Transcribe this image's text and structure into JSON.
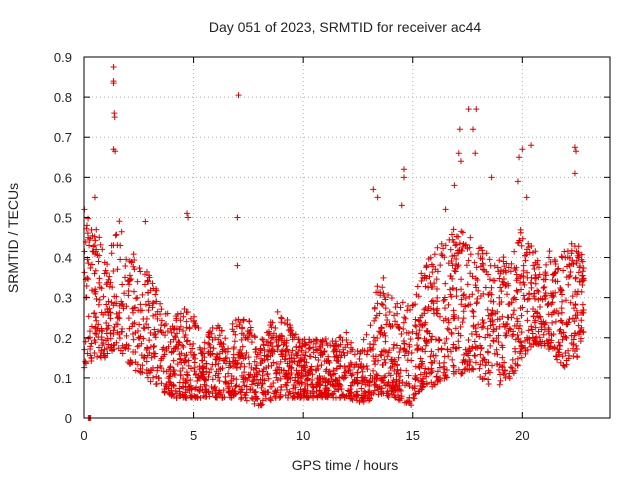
{
  "chart_data": {
    "type": "scatter",
    "title": "Day 051 of 2023, SRMTID for receiver ac44",
    "xlabel": "GPS time / hours",
    "ylabel": "SRMTID / TECUs",
    "xlim": [
      0,
      24
    ],
    "ylim": [
      0,
      0.9
    ],
    "xticks": [
      0,
      5,
      10,
      15,
      20
    ],
    "yticks": [
      0,
      0.1,
      0.2,
      0.3,
      0.4,
      0.5,
      0.6,
      0.7,
      0.8,
      0.9
    ],
    "grid": true,
    "marker": "+",
    "color": "#e00000",
    "envelope": [
      [
        0.0,
        0.12,
        0.5
      ],
      [
        0.5,
        0.15,
        0.5
      ],
      [
        1.0,
        0.15,
        0.4
      ],
      [
        1.5,
        0.18,
        0.52
      ],
      [
        2.0,
        0.14,
        0.42
      ],
      [
        2.5,
        0.11,
        0.4
      ],
      [
        3.0,
        0.09,
        0.36
      ],
      [
        3.5,
        0.07,
        0.3
      ],
      [
        4.0,
        0.05,
        0.25
      ],
      [
        4.5,
        0.05,
        0.28
      ],
      [
        5.0,
        0.05,
        0.26
      ],
      [
        5.5,
        0.05,
        0.22
      ],
      [
        6.0,
        0.05,
        0.24
      ],
      [
        6.5,
        0.05,
        0.22
      ],
      [
        7.0,
        0.05,
        0.25
      ],
      [
        7.5,
        0.04,
        0.25
      ],
      [
        8.0,
        0.03,
        0.18
      ],
      [
        8.5,
        0.04,
        0.25
      ],
      [
        9.0,
        0.05,
        0.28
      ],
      [
        9.5,
        0.05,
        0.22
      ],
      [
        10.0,
        0.05,
        0.2
      ],
      [
        10.5,
        0.05,
        0.2
      ],
      [
        11.0,
        0.05,
        0.2
      ],
      [
        11.5,
        0.05,
        0.2
      ],
      [
        12.0,
        0.05,
        0.22
      ],
      [
        12.5,
        0.04,
        0.17
      ],
      [
        13.0,
        0.04,
        0.22
      ],
      [
        13.5,
        0.06,
        0.38
      ],
      [
        14.0,
        0.05,
        0.3
      ],
      [
        14.5,
        0.04,
        0.3
      ],
      [
        15.0,
        0.03,
        0.28
      ],
      [
        15.5,
        0.07,
        0.4
      ],
      [
        16.0,
        0.08,
        0.42
      ],
      [
        16.5,
        0.1,
        0.45
      ],
      [
        17.0,
        0.1,
        0.48
      ],
      [
        17.5,
        0.12,
        0.45
      ],
      [
        18.0,
        0.1,
        0.45
      ],
      [
        18.5,
        0.08,
        0.4
      ],
      [
        19.0,
        0.08,
        0.4
      ],
      [
        19.5,
        0.1,
        0.42
      ],
      [
        20.0,
        0.15,
        0.48
      ],
      [
        20.5,
        0.18,
        0.42
      ],
      [
        21.0,
        0.18,
        0.45
      ],
      [
        21.5,
        0.15,
        0.4
      ],
      [
        22.0,
        0.12,
        0.42
      ],
      [
        22.5,
        0.15,
        0.45
      ],
      [
        22.8,
        0.2,
        0.4
      ]
    ],
    "outliers": [
      [
        1.35,
        0.875
      ],
      [
        1.35,
        0.84
      ],
      [
        1.35,
        0.835
      ],
      [
        1.38,
        0.76
      ],
      [
        1.4,
        0.75
      ],
      [
        1.35,
        0.67
      ],
      [
        1.42,
        0.665
      ],
      [
        7.05,
        0.805
      ],
      [
        7.0,
        0.5
      ],
      [
        7.0,
        0.38
      ],
      [
        17.55,
        0.77
      ],
      [
        17.9,
        0.77
      ],
      [
        17.15,
        0.72
      ],
      [
        17.75,
        0.72
      ],
      [
        17.1,
        0.66
      ],
      [
        17.2,
        0.64
      ],
      [
        17.85,
        0.66
      ],
      [
        20.4,
        0.68
      ],
      [
        20.0,
        0.67
      ],
      [
        19.85,
        0.65
      ],
      [
        22.4,
        0.675
      ],
      [
        22.45,
        0.665
      ],
      [
        22.4,
        0.61
      ],
      [
        14.6,
        0.62
      ],
      [
        14.6,
        0.6
      ],
      [
        13.2,
        0.57
      ],
      [
        13.4,
        0.55
      ],
      [
        14.5,
        0.53
      ],
      [
        16.9,
        0.58
      ],
      [
        18.6,
        0.6
      ],
      [
        4.7,
        0.51
      ],
      [
        4.75,
        0.5
      ],
      [
        0.5,
        0.55
      ],
      [
        0.02,
        0.52
      ],
      [
        2.8,
        0.49
      ],
      [
        19.8,
        0.59
      ],
      [
        20.2,
        0.55
      ],
      [
        16.5,
        0.52
      ],
      [
        0.2,
        0.0
      ],
      [
        0.25,
        0.0
      ],
      [
        0.3,
        0.0
      ]
    ],
    "seed": 51
  }
}
